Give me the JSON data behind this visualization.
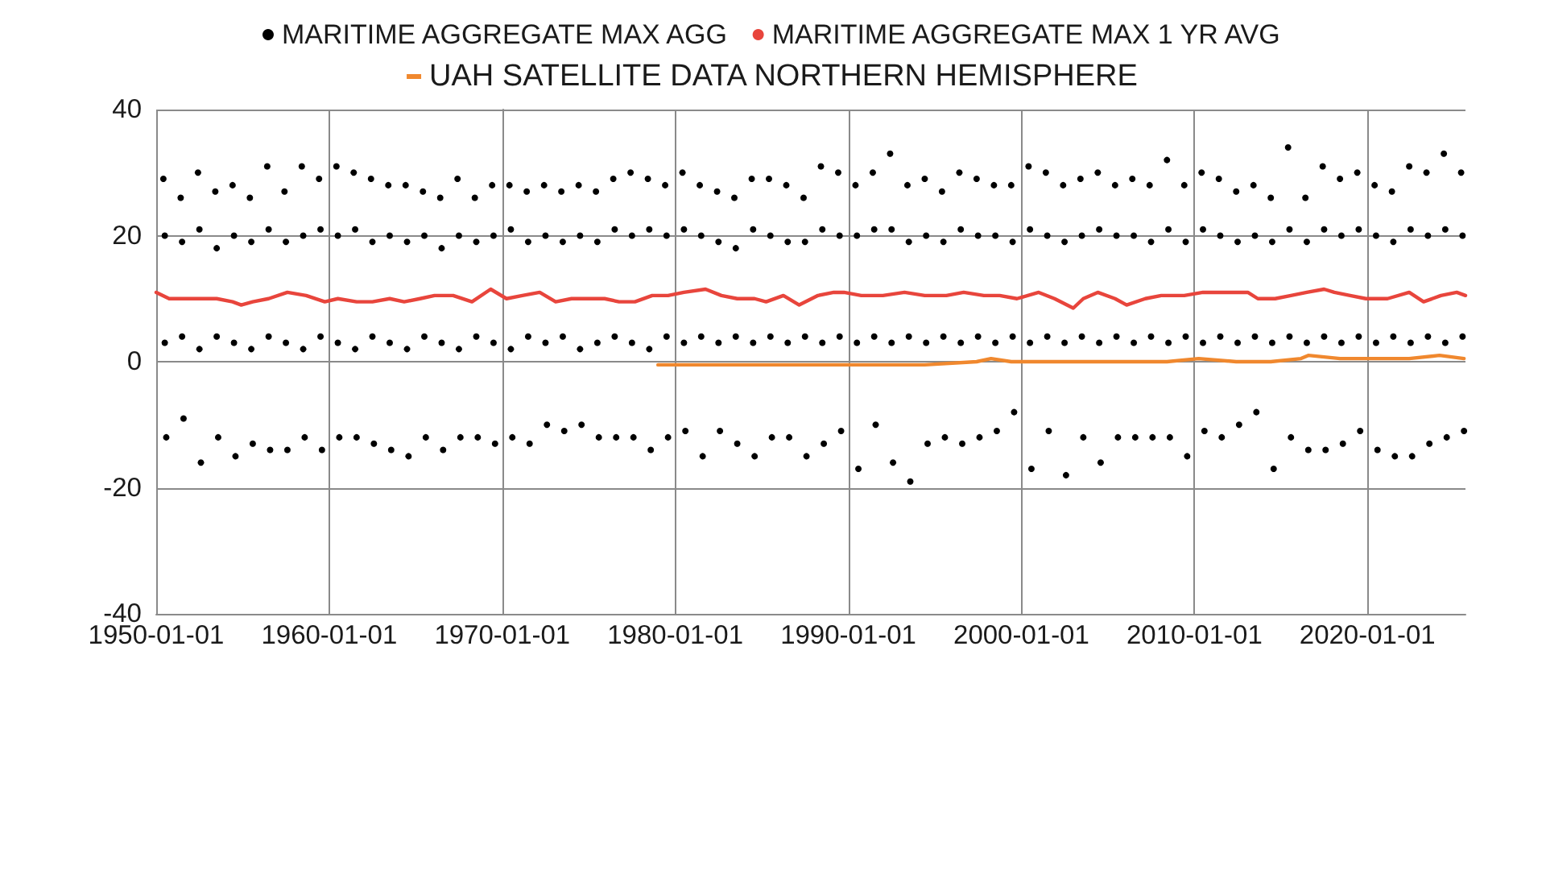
{
  "chart_data": {
    "type": "scatter",
    "xlim": [
      "1950-01-01",
      "2025-09-01"
    ],
    "xticks": [
      "1950-01-01",
      "1960-01-01",
      "1970-01-01",
      "1980-01-01",
      "1990-01-01",
      "2000-01-01",
      "2010-01-01",
      "2020-01-01"
    ],
    "ylim": [
      -40,
      40
    ],
    "yticks": [
      -40,
      -20,
      0,
      20,
      40
    ],
    "grid": true,
    "legend": "top",
    "marker": "circle",
    "series": [
      {
        "name": "MARITIME AGGREGATE MAX AGG",
        "color": "#000000",
        "x": [
          "1950-06",
          "1950-07",
          "1950-07",
          "1950-08",
          "1951-06",
          "1951-07",
          "1951-07",
          "1951-08",
          "1952-06",
          "1952-07",
          "1952-07",
          "1952-08",
          "1953-06",
          "1953-07",
          "1953-07",
          "1953-08",
          "1954-06",
          "1954-07",
          "1954-07",
          "1954-08",
          "1955-06",
          "1955-07",
          "1955-07",
          "1955-08",
          "1956-06",
          "1956-07",
          "1956-07",
          "1956-08",
          "1957-06",
          "1957-07",
          "1957-07",
          "1957-08",
          "1958-06",
          "1958-07",
          "1958-07",
          "1958-08",
          "1959-06",
          "1959-07",
          "1959-07",
          "1959-08",
          "1960-06",
          "1960-07",
          "1960-07",
          "1960-08",
          "1961-06",
          "1961-07",
          "1961-07",
          "1961-08",
          "1962-06",
          "1962-07",
          "1962-07",
          "1962-08",
          "1963-06",
          "1963-07",
          "1963-07",
          "1963-08",
          "1964-06",
          "1964-07",
          "1964-07",
          "1964-08",
          "1965-06",
          "1965-07",
          "1965-07",
          "1965-08",
          "1966-06",
          "1966-07",
          "1966-07",
          "1966-08",
          "1967-06",
          "1967-07",
          "1967-07",
          "1967-08",
          "1968-06",
          "1968-07",
          "1968-07",
          "1968-08",
          "1969-06",
          "1969-07",
          "1969-07",
          "1969-08",
          "1970-06",
          "1970-07",
          "1970-07",
          "1970-08",
          "1971-06",
          "1971-07",
          "1971-07",
          "1971-08",
          "1972-06",
          "1972-07",
          "1972-07",
          "1972-08",
          "1973-06",
          "1973-07",
          "1973-07",
          "1973-08",
          "1974-06",
          "1974-07",
          "1974-07",
          "1974-08",
          "1975-06",
          "1975-07",
          "1975-07",
          "1975-08",
          "1976-06",
          "1976-07",
          "1976-07",
          "1976-08",
          "1977-06",
          "1977-07",
          "1977-07",
          "1977-08",
          "1978-06",
          "1978-07",
          "1978-07",
          "1978-08",
          "1979-06",
          "1979-07",
          "1979-07",
          "1979-08",
          "1980-06",
          "1980-07",
          "1980-07",
          "1980-08",
          "1981-06",
          "1981-07",
          "1981-07",
          "1981-08",
          "1982-06",
          "1982-07",
          "1982-07",
          "1982-08",
          "1983-06",
          "1983-07",
          "1983-07",
          "1983-08",
          "1984-06",
          "1984-07",
          "1984-07",
          "1984-08",
          "1985-06",
          "1985-07",
          "1985-07",
          "1985-08",
          "1986-06",
          "1986-07",
          "1986-07",
          "1986-08",
          "1987-06",
          "1987-07",
          "1987-07",
          "1987-08",
          "1988-06",
          "1988-07",
          "1988-07",
          "1988-08",
          "1989-06",
          "1989-07",
          "1989-07",
          "1989-08",
          "1990-06",
          "1990-07",
          "1990-07",
          "1990-08",
          "1991-06",
          "1991-07",
          "1991-07",
          "1991-08",
          "1992-06",
          "1992-07",
          "1992-07",
          "1992-08",
          "1993-06",
          "1993-07",
          "1993-07",
          "1993-08",
          "1994-06",
          "1994-07",
          "1994-07",
          "1994-08",
          "1995-06",
          "1995-07",
          "1995-07",
          "1995-08",
          "1996-06",
          "1996-07",
          "1996-07",
          "1996-08",
          "1997-06",
          "1997-07",
          "1997-07",
          "1997-08",
          "1998-06",
          "1998-07",
          "1998-07",
          "1998-08",
          "1999-06",
          "1999-07",
          "1999-07",
          "1999-08",
          "2000-06",
          "2000-07",
          "2000-07",
          "2000-08",
          "2001-06",
          "2001-07",
          "2001-07",
          "2001-08",
          "2002-06",
          "2002-07",
          "2002-07",
          "2002-08",
          "2003-06",
          "2003-07",
          "2003-07",
          "2003-08",
          "2004-06",
          "2004-07",
          "2004-07",
          "2004-08",
          "2005-06",
          "2005-07",
          "2005-07",
          "2005-08",
          "2006-06",
          "2006-07",
          "2006-07",
          "2006-08",
          "2007-06",
          "2007-07",
          "2007-07",
          "2007-08",
          "2008-06",
          "2008-07",
          "2008-07",
          "2008-08",
          "2009-06",
          "2009-07",
          "2009-07",
          "2009-08",
          "2010-06",
          "2010-07",
          "2010-07",
          "2010-08",
          "2011-06",
          "2011-07",
          "2011-07",
          "2011-08",
          "2012-06",
          "2012-07",
          "2012-07",
          "2012-08",
          "2013-06",
          "2013-07",
          "2013-07",
          "2013-08",
          "2014-06",
          "2014-07",
          "2014-07",
          "2014-08",
          "2015-06",
          "2015-07",
          "2015-07",
          "2015-08",
          "2016-06",
          "2016-07",
          "2016-07",
          "2016-08",
          "2017-06",
          "2017-07",
          "2017-07",
          "2017-08",
          "2018-06",
          "2018-07",
          "2018-07",
          "2018-08",
          "2019-06",
          "2019-07",
          "2019-07",
          "2019-08",
          "2020-06",
          "2020-07",
          "2020-07",
          "2020-08",
          "2021-06",
          "2021-07",
          "2021-07",
          "2021-08",
          "2022-06",
          "2022-07",
          "2022-07",
          "2022-08",
          "2023-06",
          "2023-07",
          "2023-07",
          "2023-08",
          "2024-06",
          "2024-07",
          "2024-07",
          "2024-08",
          "2025-06",
          "2025-07",
          "2025-07",
          "2025-08"
        ],
        "values": [
          29,
          20,
          3,
          -12,
          26,
          19,
          4,
          -9,
          30,
          21,
          2,
          -16,
          27,
          18,
          4,
          -12,
          28,
          20,
          3,
          -15,
          26,
          19,
          2,
          -13,
          31,
          21,
          4,
          -14,
          27,
          19,
          3,
          -14,
          31,
          20,
          2,
          -12,
          29,
          21,
          4,
          -14,
          31,
          20,
          3,
          -12,
          30,
          21,
          2,
          -12,
          29,
          19,
          4,
          -13,
          28,
          20,
          3,
          -14,
          28,
          19,
          2,
          -15,
          27,
          20,
          4,
          -12,
          26,
          18,
          3,
          -14,
          29,
          20,
          2,
          -12,
          26,
          19,
          4,
          -12,
          28,
          20,
          3,
          -13,
          28,
          21,
          2,
          -12,
          27,
          19,
          4,
          -13,
          28,
          20,
          3,
          -10,
          27,
          19,
          4,
          -11,
          28,
          20,
          2,
          -10,
          27,
          19,
          3,
          -12,
          29,
          21,
          4,
          -12,
          30,
          20,
          3,
          -12,
          29,
          21,
          2,
          -14,
          28,
          20,
          4,
          -12,
          30,
          21,
          3,
          -11,
          28,
          20,
          4,
          -15,
          27,
          19,
          3,
          -11,
          26,
          18,
          4,
          -13,
          29,
          21,
          3,
          -15,
          29,
          20,
          4,
          -12,
          28,
          19,
          3,
          -12,
          26,
          19,
          4,
          -15,
          31,
          21,
          3,
          -13,
          30,
          20,
          4,
          -11,
          28,
          20,
          3,
          -17,
          30,
          21,
          4,
          -10,
          33,
          21,
          3,
          -16,
          28,
          19,
          4,
          -19,
          29,
          20,
          3,
          -13,
          27,
          19,
          4,
          -12,
          30,
          21,
          3,
          -13,
          29,
          20,
          4,
          -12,
          28,
          20,
          3,
          -11,
          28,
          19,
          4,
          -8,
          31,
          21,
          3,
          -17,
          30,
          20,
          4,
          -11,
          28,
          19,
          3,
          -18,
          29,
          20,
          4,
          -12,
          30,
          21,
          3,
          -16,
          28,
          20,
          4,
          -12,
          29,
          20,
          3,
          -12,
          28,
          19,
          4,
          -12,
          32,
          21,
          3,
          -12,
          28,
          19,
          4,
          -15,
          30,
          21,
          3,
          -11,
          29,
          20,
          4,
          -12,
          27,
          19,
          3,
          -10,
          28,
          20,
          4,
          -8,
          26,
          19,
          3,
          -17,
          34,
          21,
          4,
          -12,
          26,
          19,
          3,
          -14,
          31,
          21,
          4,
          -14,
          29,
          20,
          3,
          -13,
          30,
          21,
          4,
          -11,
          28,
          20,
          3,
          -14,
          27,
          19,
          4,
          -15,
          31,
          21,
          3,
          -15,
          30,
          20,
          4,
          -13,
          33,
          21,
          3,
          -12,
          30,
          20,
          4,
          -11
        ]
      },
      {
        "name": "MARITIME AGGREGATE MAX 1 YR AVG",
        "type": "line",
        "marker": "none",
        "color": "#e8453c",
        "x": [
          "1950-01",
          "1950-10",
          "1951-09",
          "1952-08",
          "1953-07",
          "1954-06",
          "1954-12",
          "1955-08",
          "1956-07",
          "1957-08",
          "1958-09",
          "1959-10",
          "1960-07",
          "1961-08",
          "1962-07",
          "1963-07",
          "1964-05",
          "1965-04",
          "1966-02",
          "1967-03",
          "1968-04",
          "1969-05",
          "1970-04",
          "1971-03",
          "1972-03",
          "1973-02",
          "1974-01",
          "1975-01",
          "1975-12",
          "1976-10",
          "1977-09",
          "1978-09",
          "1979-08",
          "1980-07",
          "1981-10",
          "1982-09",
          "1983-08",
          "1984-08",
          "1985-04",
          "1986-04",
          "1987-03",
          "1988-04",
          "1989-03",
          "1989-10",
          "1990-10",
          "1992-01",
          "1993-04",
          "1994-06",
          "1995-09",
          "1996-09",
          "1997-11",
          "1998-10",
          "1999-10",
          "2001-01",
          "2001-12",
          "2003-01",
          "2003-08",
          "2004-06",
          "2005-06",
          "2006-02",
          "2007-03",
          "2008-02",
          "2008-12",
          "2009-06",
          "2010-07",
          "2011-08",
          "2012-07",
          "2013-02",
          "2013-09",
          "2014-09",
          "2015-08",
          "2016-07",
          "2017-07",
          "2018-02",
          "2019-01",
          "2019-12",
          "2021-03",
          "2022-06",
          "2023-04",
          "2024-04",
          "2025-03",
          "2025-09"
        ],
        "values": [
          11,
          10,
          10,
          10,
          10,
          9.5,
          9,
          9.5,
          10,
          11,
          10.5,
          9.5,
          10,
          9.5,
          9.5,
          10,
          9.5,
          10,
          10.5,
          10.5,
          9.5,
          11.5,
          10,
          10.5,
          11,
          9.5,
          10,
          10,
          10,
          9.5,
          9.5,
          10.5,
          10.5,
          11,
          11.5,
          10.5,
          10,
          10,
          9.5,
          10.5,
          9,
          10.5,
          11,
          11,
          10.5,
          10.5,
          11,
          10.5,
          10.5,
          11,
          10.5,
          10.5,
          10,
          11,
          10,
          8.5,
          10,
          11,
          10,
          9,
          10,
          10.5,
          10.5,
          10.5,
          11,
          11,
          11,
          11,
          10,
          10,
          10.5,
          11,
          11.5,
          11,
          10.5,
          10,
          10,
          11,
          9.5,
          10.5,
          11,
          10.5
        ]
      },
      {
        "name": "UAH SATELLITE DATA NORTHERN HEMISPHERE",
        "type": "line",
        "marker": "none",
        "color": "#f0882e",
        "x": [
          "1979-01",
          "1981-01",
          "1983-06",
          "1985-06",
          "1988-06",
          "1990-06",
          "1992-06",
          "1994-06",
          "1997-06",
          "1998-04",
          "1999-06",
          "2002-06",
          "2005-06",
          "2008-06",
          "2010-04",
          "2012-06",
          "2014-06",
          "2016-03",
          "2016-08",
          "2018-06",
          "2020-03",
          "2022-06",
          "2024-03",
          "2025-08"
        ],
        "values": [
          -0.5,
          -0.5,
          -0.5,
          -0.5,
          -0.5,
          -0.5,
          -0.5,
          -0.5,
          0,
          0.5,
          0,
          0,
          0,
          0,
          0.5,
          0,
          0,
          0.5,
          1,
          0.5,
          0.5,
          0.5,
          1,
          0.5
        ]
      }
    ]
  }
}
